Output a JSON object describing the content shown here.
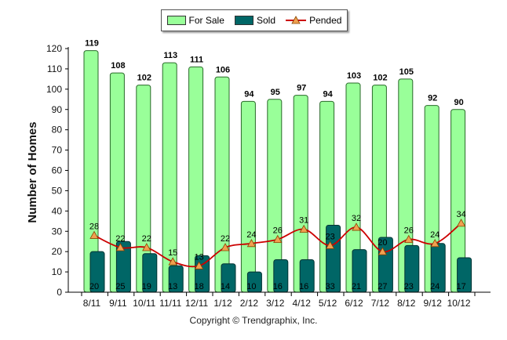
{
  "chart_data": {
    "type": "bar",
    "ylabel": "Number of Homes",
    "ylim": [
      0,
      120
    ],
    "yticks": [
      0,
      10,
      20,
      30,
      40,
      50,
      60,
      70,
      80,
      90,
      100,
      110,
      120
    ],
    "categories": [
      "8/11",
      "9/11",
      "10/11",
      "11/11",
      "12/11",
      "1/12",
      "2/12",
      "3/12",
      "4/12",
      "5/12",
      "6/12",
      "7/12",
      "8/12",
      "9/12",
      "10/12"
    ],
    "series": [
      {
        "name": "For Sale",
        "type": "bar",
        "color": "#99ff99",
        "values": [
          119,
          108,
          102,
          113,
          111,
          106,
          94,
          95,
          97,
          94,
          103,
          102,
          105,
          92,
          90
        ]
      },
      {
        "name": "Sold",
        "type": "bar",
        "color": "#006666",
        "values": [
          20,
          25,
          19,
          13,
          18,
          14,
          10,
          16,
          16,
          33,
          21,
          27,
          23,
          24,
          17
        ]
      },
      {
        "name": "Pended",
        "type": "line",
        "color": "#cc0000",
        "marker_color": "#f0a050",
        "values": [
          28,
          22,
          22,
          15,
          13,
          22,
          24,
          26,
          31,
          23,
          32,
          20,
          26,
          24,
          34
        ]
      }
    ],
    "legend_position": "top-center",
    "grid": false
  },
  "footer": {
    "copyright": "Copyright © Trendgraphix, Inc."
  }
}
